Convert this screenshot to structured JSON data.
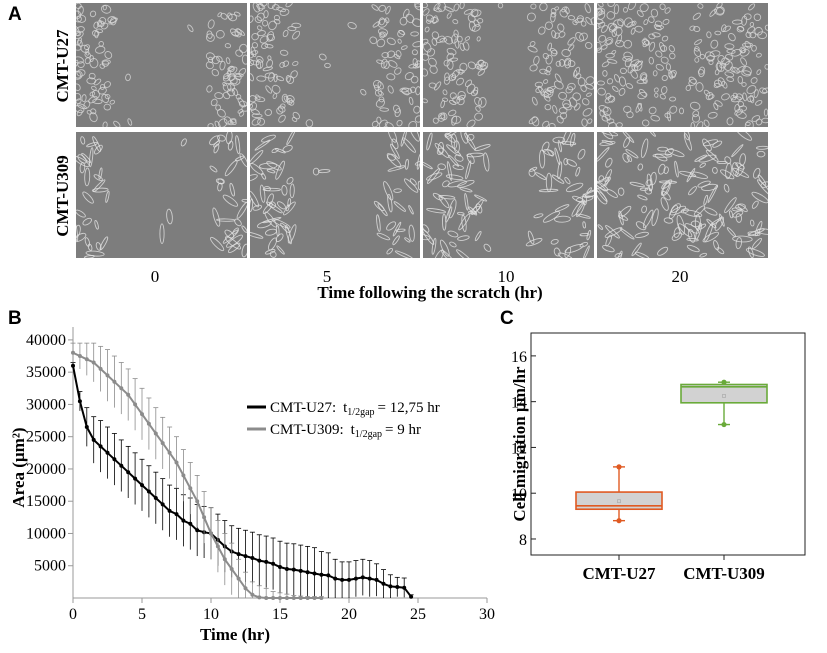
{
  "panels": {
    "a": "A",
    "b": "B",
    "c": "C"
  },
  "panel_a": {
    "rows": [
      "CMT-U27",
      "CMT-U309"
    ],
    "times": [
      "0",
      "5",
      "10",
      "20"
    ],
    "xlabel": "Time following the scratch (hr)",
    "cell_color_u27": "#d9d9d9",
    "cell_color_u309": "#e4e4e4",
    "background_color": "#7d7d7d"
  },
  "chart_data": [
    {
      "type": "line",
      "panel": "B",
      "xlabel": "Time (hr)",
      "ylabel": "Area (µm²)",
      "xlim": [
        0,
        30
      ],
      "ylim": [
        0,
        42000
      ],
      "xticks": [
        0,
        5,
        10,
        15,
        20,
        25,
        30
      ],
      "yticks": [
        5000,
        10000,
        15000,
        20000,
        25000,
        30000,
        35000,
        40000
      ],
      "legend": "center-right",
      "series": [
        {
          "name": "CMT-U27:",
          "legend_note_prefix": "t",
          "legend_note_sub": "1/2gap",
          "legend_note_value": "= 12,75 hr",
          "color": "#000000",
          "x": [
            0,
            0.5,
            1,
            1.5,
            2,
            2.5,
            3,
            3.5,
            4,
            4.5,
            5,
            5.5,
            6,
            6.5,
            7,
            7.5,
            8,
            8.5,
            9,
            9.5,
            10,
            10.5,
            11,
            11.5,
            12,
            12.5,
            13,
            13.5,
            14,
            14.5,
            15,
            15.5,
            16,
            16.5,
            17,
            17.5,
            18,
            18.5,
            19,
            19.5,
            20,
            20.5,
            21,
            21.5,
            22,
            22.5,
            23,
            23.5,
            24,
            24.5
          ],
          "y": [
            36000,
            30500,
            26500,
            24500,
            23500,
            22500,
            21500,
            20500,
            19500,
            18500,
            17500,
            16500,
            15500,
            14500,
            13500,
            13000,
            12000,
            11500,
            10500,
            10200,
            10000,
            9000,
            8000,
            7200,
            6800,
            6500,
            6200,
            5800,
            5600,
            5300,
            4800,
            4500,
            4400,
            4200,
            4000,
            3800,
            3600,
            3500,
            3000,
            2800,
            2800,
            3000,
            3200,
            3000,
            2800,
            2200,
            1800,
            1700,
            1600,
            200
          ],
          "error": [
            500,
            1500,
            3000,
            3600,
            4000,
            4000,
            4000,
            4000,
            4000,
            4000,
            4000,
            4000,
            4000,
            4000,
            4000,
            4000,
            4000,
            4000,
            4000,
            4000,
            4000,
            4000,
            4000,
            4000,
            4000,
            4000,
            4000,
            4000,
            4000,
            4000,
            4000,
            4000,
            4000,
            4000,
            4000,
            4000,
            3600,
            3500,
            3000,
            2800,
            2800,
            2800,
            2800,
            2800,
            2500,
            2200,
            1800,
            1500,
            1500,
            300
          ]
        },
        {
          "name": "CMT-U309:",
          "legend_note_prefix": "t",
          "legend_note_sub": "1/2gap",
          "legend_note_value": "= 9 hr",
          "color": "#8c8c8c",
          "x": [
            0,
            0.5,
            1,
            1.5,
            2,
            2.5,
            3,
            3.5,
            4,
            4.5,
            5,
            5.5,
            6,
            6.5,
            7,
            7.5,
            8,
            8.5,
            9,
            9.5,
            10,
            10.5,
            11,
            11.5,
            12,
            12.5,
            13,
            13.5,
            14,
            14.5,
            15,
            15.5,
            16,
            16.5,
            17,
            17.5,
            18
          ],
          "y": [
            38000,
            37500,
            37000,
            36500,
            35500,
            34500,
            33500,
            32500,
            31500,
            30000,
            28500,
            27000,
            25500,
            24000,
            22500,
            21000,
            19000,
            17000,
            15000,
            12500,
            10000,
            8000,
            6000,
            4500,
            3000,
            1500,
            500,
            100,
            0,
            0,
            0,
            0,
            0,
            0,
            0,
            0,
            0
          ],
          "error": [
            1500,
            2000,
            2500,
            3000,
            3500,
            4000,
            4000,
            4000,
            4000,
            4000,
            4000,
            4000,
            4000,
            4000,
            4000,
            4000,
            4000,
            4000,
            4000,
            4000,
            4000,
            4000,
            4000,
            4000,
            3000,
            2500,
            2000,
            1800,
            1500,
            1000,
            800,
            600,
            400,
            300,
            200,
            200,
            200
          ]
        }
      ]
    },
    {
      "type": "box",
      "panel": "C",
      "ylabel": "Cell migration µm/hr",
      "categories": [
        "CMT-U27",
        "CMT-U309"
      ],
      "ylim": [
        7.3,
        17
      ],
      "yticks": [
        8,
        10,
        12,
        14,
        16
      ],
      "boxes": [
        {
          "name": "CMT-U27",
          "min": 8.8,
          "q1": 9.3,
          "median": 9.45,
          "q3": 10.05,
          "max": 11.15,
          "mean": 9.65,
          "color": "#e05a22"
        },
        {
          "name": "CMT-U309",
          "min": 13.0,
          "q1": 13.95,
          "median": 14.65,
          "q3": 14.75,
          "max": 14.85,
          "mean": 14.25,
          "color": "#6aaa3a"
        }
      ]
    }
  ]
}
